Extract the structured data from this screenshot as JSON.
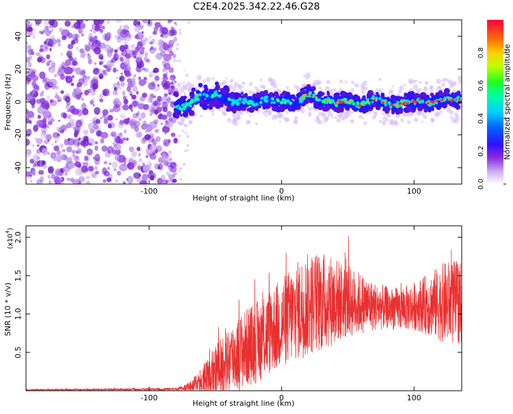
{
  "title": "C2E4.2025.342.22.46.G28",
  "chart_data": [
    {
      "type": "heatmap",
      "name": "spectrogram",
      "xlabel": "Height of straight line (km)",
      "ylabel": "Frequency (Hz)",
      "xlim": [
        -193,
        136
      ],
      "ylim": [
        -50,
        50
      ],
      "xticks": [
        -100,
        0,
        100
      ],
      "xtick_labels": [
        "-100",
        "0",
        "100"
      ],
      "yticks": [
        -40,
        -20,
        0,
        20,
        40
      ],
      "ytick_labels": [
        "-40",
        "-20",
        "0",
        "20",
        "40"
      ],
      "colorbar": {
        "label": "Normalized spectral amplitude",
        "range": [
          0,
          1
        ],
        "ticks": [
          0,
          0.2,
          0.4,
          0.6,
          0.8
        ],
        "tick_labels": [
          "0.0",
          "0.2",
          "0.4",
          "0.6",
          "0.8"
        ]
      },
      "noise_region_x": [
        -193,
        -80
      ],
      "signal_track": {
        "x": [
          -80,
          -75,
          -70,
          -65,
          -60,
          -55,
          -50,
          -45,
          -40,
          -35,
          -30,
          -25,
          -20,
          -15,
          -10,
          -5,
          0,
          5,
          10,
          15,
          20,
          25,
          30,
          35,
          40,
          45,
          50,
          55,
          60,
          65,
          70,
          75,
          80,
          85,
          90,
          95,
          100,
          105,
          110,
          115,
          120,
          125,
          130,
          135
        ],
        "freq": [
          -2,
          -3,
          -2,
          2,
          4,
          3,
          5,
          2,
          1,
          -1,
          1,
          0,
          -1,
          1,
          2,
          0,
          0,
          1,
          -1,
          2,
          5,
          3,
          0,
          1,
          -1,
          0,
          1,
          -1,
          -2,
          0,
          2,
          1,
          -1,
          -2,
          -1,
          0,
          0,
          1,
          -1,
          0,
          1,
          2,
          1,
          2
        ]
      }
    },
    {
      "type": "line",
      "name": "snr",
      "xlabel": "Height of straight line (km)",
      "ylabel": "SNR (10 * v/v)",
      "multiplier_label": "(x10",
      "multiplier_exp": "4",
      "multiplier_close": ")",
      "xlim": [
        -193,
        136
      ],
      "ylim": [
        0,
        2.15
      ],
      "xticks": [
        -100,
        0,
        100
      ],
      "xtick_labels": [
        "-100",
        "0",
        "100"
      ],
      "yticks": [
        0.5,
        1.0,
        1.5,
        2.0
      ],
      "ytick_labels": [
        "0.5",
        "1.0",
        "1.5",
        "2.0"
      ],
      "color": "#e83030",
      "envelope": {
        "x": [
          -193,
          -80,
          -75,
          -70,
          -65,
          -60,
          -55,
          -50,
          -45,
          -40,
          -35,
          -30,
          -25,
          -20,
          -15,
          -10,
          -5,
          0,
          5,
          10,
          15,
          20,
          25,
          30,
          35,
          40,
          45,
          50,
          55,
          60,
          65,
          70,
          75,
          80,
          85,
          90,
          95,
          100,
          105,
          110,
          115,
          120,
          125,
          130,
          136
        ],
        "mean": [
          0.01,
          0.02,
          0.03,
          0.05,
          0.08,
          0.12,
          0.18,
          0.25,
          0.32,
          0.4,
          0.46,
          0.52,
          0.58,
          0.62,
          0.68,
          0.75,
          0.82,
          0.88,
          0.95,
          1.02,
          1.08,
          1.12,
          1.15,
          1.16,
          1.17,
          1.18,
          1.17,
          1.16,
          1.15,
          1.14,
          1.12,
          1.1,
          1.09,
          1.08,
          1.07,
          1.07,
          1.08,
          1.1,
          1.12,
          1.12,
          1.13,
          1.14,
          1.15,
          1.15,
          1.15
        ],
        "amp": [
          0.008,
          0.02,
          0.03,
          0.06,
          0.12,
          0.2,
          0.28,
          0.35,
          0.4,
          0.45,
          0.48,
          0.5,
          0.52,
          0.54,
          0.55,
          0.56,
          0.58,
          0.6,
          0.62,
          0.64,
          0.66,
          0.68,
          0.68,
          0.66,
          0.62,
          0.58,
          0.52,
          0.48,
          0.44,
          0.4,
          0.36,
          0.32,
          0.3,
          0.28,
          0.28,
          0.28,
          0.3,
          0.32,
          0.35,
          0.4,
          0.45,
          0.5,
          0.55,
          0.55,
          0.55
        ]
      }
    }
  ]
}
